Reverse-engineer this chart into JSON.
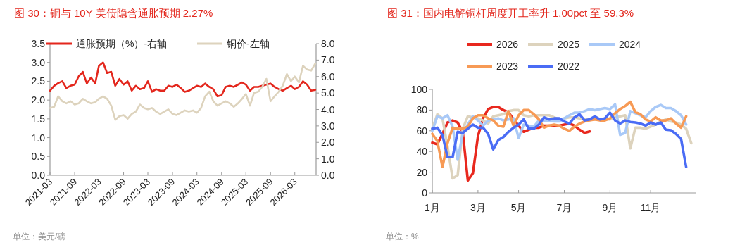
{
  "chart_data": [
    {
      "type": "line",
      "title": "图 30：铜与 10Y 美债隐含通胀预期 2.27%",
      "x": [
        "2021-03-01",
        "2021-04-01",
        "2021-05-01",
        "2021-06-01",
        "2021-07-01",
        "2021-08-01",
        "2021-09-01",
        "2021-10-01",
        "2021-11-01",
        "2021-12-01",
        "2022-01-01",
        "2022-02-01",
        "2022-03-01",
        "2022-04-01",
        "2022-05-01",
        "2022-06-01",
        "2022-07-01",
        "2022-08-01",
        "2022-09-01",
        "2022-10-01",
        "2022-11-01",
        "2022-12-01",
        "2023-01-01",
        "2023-02-01",
        "2023-03-01",
        "2023-04-01",
        "2023-05-01",
        "2023-06-01",
        "2023-07-01",
        "2023-08-01",
        "2023-09-01",
        "2023-10-01",
        "2023-11-01",
        "2023-12-01",
        "2024-01-01",
        "2024-02-01",
        "2024-03-01",
        "2024-04-01",
        "2024-05-01",
        "2024-06-01",
        "2024-07-01",
        "2024-08-01",
        "2024-09-01",
        "2024-10-01",
        "2024-11-01",
        "2024-12-01",
        "2025-01-01",
        "2025-02-01",
        "2025-03-01",
        "2025-04-01",
        "2025-05-01",
        "2025-06-01",
        "2025-07-01",
        "2025-08-01",
        "2025-09-01",
        "2025-10-01",
        "2025-11-01",
        "2025-12-01",
        "2026-01-01",
        "2026-02-01",
        "2026-03-01",
        "2026-04-01",
        "2026-05-01",
        "2026-06-01",
        "2026-07-01",
        "2026-08-01"
      ],
      "series": [
        {
          "name": "通胀预期（%）-右轴",
          "color": "#e3261c",
          "values": [
            2.25,
            2.38,
            2.45,
            2.5,
            2.32,
            2.38,
            2.41,
            2.63,
            2.75,
            2.44,
            2.6,
            2.44,
            2.91,
            3.0,
            2.72,
            2.75,
            2.38,
            2.56,
            2.41,
            2.5,
            2.25,
            2.38,
            2.29,
            2.32,
            2.5,
            2.22,
            2.29,
            2.25,
            2.25,
            2.38,
            2.35,
            2.41,
            2.32,
            2.22,
            2.25,
            2.32,
            2.38,
            2.35,
            2.44,
            2.35,
            2.29,
            2.1,
            2.13,
            2.35,
            2.38,
            2.35,
            2.41,
            2.47,
            2.41,
            2.25,
            2.35,
            2.35,
            2.38,
            2.41,
            2.44,
            2.35,
            2.29,
            2.25,
            2.32,
            2.38,
            2.29,
            2.35,
            2.5,
            2.41,
            2.25,
            2.27
          ]
        },
        {
          "name": "铜价-左轴",
          "color": "#ddd3bd",
          "axis": "y2",
          "values": [
            4.09,
            4.16,
            4.8,
            4.5,
            4.37,
            4.5,
            4.3,
            4.37,
            4.65,
            4.5,
            4.37,
            4.44,
            4.65,
            4.8,
            4.65,
            4.23,
            3.37,
            3.59,
            3.66,
            3.44,
            3.73,
            3.87,
            4.3,
            4.09,
            4.01,
            4.09,
            3.87,
            3.73,
            3.87,
            4.01,
            3.73,
            3.66,
            3.8,
            3.94,
            3.87,
            3.94,
            3.8,
            4.09,
            4.8,
            5.08,
            4.5,
            4.23,
            4.37,
            4.5,
            4.37,
            4.16,
            4.37,
            4.65,
            4.94,
            4.23,
            5.01,
            5.08,
            5.37,
            5.86,
            4.5,
            4.8,
            5.08,
            5.44,
            6.15,
            5.72,
            6.0,
            5.65,
            6.65,
            6.43,
            6.36,
            6.79
          ]
        }
      ],
      "xlim": [
        "2021-03-01",
        "2026-08-07"
      ],
      "xticks": [
        {
          "value": "2021-03-01",
          "label": "2021-03"
        },
        {
          "value": "2021-09-01",
          "label": "2021-09"
        },
        {
          "value": "2022-03-01",
          "label": "2022-03"
        },
        {
          "value": "2022-09-01",
          "label": "2022-09"
        },
        {
          "value": "2023-03-01",
          "label": "2023-03"
        },
        {
          "value": "2023-09-01",
          "label": "2023-09"
        },
        {
          "value": "2024-03-01",
          "label": "2024-03"
        },
        {
          "value": "2024-09-01",
          "label": "2024-09"
        },
        {
          "value": "2025-03-01",
          "label": "2025-03"
        },
        {
          "value": "2025-09-01",
          "label": "2025-09"
        },
        {
          "value": "2026-03-01",
          "label": "2026-03"
        }
      ],
      "ylim": [
        0,
        3.5
      ],
      "yticks": [
        {
          "value": 0,
          "label": "0.0"
        },
        0.5,
        {
          "value": 1,
          "label": "1.0"
        },
        1.5,
        {
          "value": 2,
          "label": "2.0"
        },
        2.5,
        {
          "value": 3,
          "label": "3.0"
        },
        3.5
      ],
      "y2lim": [
        0,
        8
      ],
      "y2ticks": [
        {
          "value": 0,
          "label": "0.0"
        },
        {
          "value": 1,
          "label": "1.0"
        },
        {
          "value": 2,
          "label": "2.0"
        },
        {
          "value": 3,
          "label": "3.0"
        },
        {
          "value": 4,
          "label": "4.0"
        },
        {
          "value": 5,
          "label": "5.0"
        },
        {
          "value": 6,
          "label": "6.0"
        },
        {
          "value": 7,
          "label": "7.0"
        },
        {
          "value": 8,
          "label": "8.0"
        }
      ],
      "legend": "top",
      "annotations": [
        "单位：美元/磅"
      ]
    },
    {
      "type": "line",
      "title": "图 31：国内电解铜杆周度开工率升 1.00pct 至 59.3%",
      "series": [
        {
          "name": "2026",
          "color": "#e8281e",
          "values": [
            48.5,
            47,
            57,
            68,
            70,
            68,
            59,
            12,
            19,
            55,
            72,
            81,
            83,
            83,
            80,
            78,
            71,
            65,
            59,
            61,
            63,
            63,
            65,
            65,
            65,
            65,
            66,
            67,
            65,
            61,
            58,
            59.3,
            null,
            null,
            null,
            null,
            null,
            null,
            null,
            null,
            null,
            null,
            null,
            null,
            null,
            null,
            null,
            null,
            null,
            null,
            null,
            null
          ]
        },
        {
          "name": "2025",
          "color": "#ddd3bd",
          "values": [
            62,
            76,
            72,
            45,
            14,
            17,
            62,
            74,
            73,
            72,
            70,
            67,
            74,
            75,
            76,
            79,
            80,
            80,
            75,
            74,
            75,
            75,
            75,
            75,
            73,
            71,
            72,
            73,
            73,
            72,
            71,
            71,
            71,
            71,
            71,
            71,
            73,
            74,
            75,
            43,
            63,
            63,
            62,
            64,
            66,
            69,
            71,
            69,
            68,
            66,
            62,
            48
          ]
        },
        {
          "name": "2024",
          "color": "#a9c9f7",
          "values": [
            60,
            74,
            72,
            75,
            64,
            32,
            57,
            66,
            74,
            70,
            65,
            70,
            71,
            72,
            70,
            71,
            72,
            53,
            66,
            65,
            64,
            70,
            70,
            70,
            69,
            69,
            72,
            75,
            77.5,
            77.5,
            79,
            81,
            80,
            81,
            82,
            81,
            85.5,
            56,
            58,
            79,
            77,
            75,
            73,
            79,
            83,
            85,
            82,
            82,
            79,
            75,
            66,
            null
          ]
        },
        {
          "name": "2023",
          "color": "#f79a55",
          "values": [
            57,
            50,
            25,
            48,
            63,
            62,
            62,
            64,
            72,
            75,
            75,
            72,
            70,
            65,
            64,
            79,
            65,
            75,
            80,
            80,
            76,
            71,
            63,
            65,
            66,
            65,
            62,
            60,
            64,
            67,
            69,
            70,
            71,
            70,
            70,
            72,
            77,
            81,
            84,
            88,
            78,
            76,
            71,
            69,
            73,
            70,
            70,
            72,
            67,
            63,
            74,
            null
          ]
        },
        {
          "name": "2022",
          "color": "#4a6cf5",
          "values": [
            62,
            63,
            56,
            34.5,
            34.5,
            59,
            58,
            62,
            66,
            63,
            63,
            57,
            42,
            51,
            54,
            59,
            63,
            66,
            71,
            62,
            62,
            66,
            73,
            71,
            72,
            72,
            69,
            67,
            73,
            76,
            70,
            71,
            74,
            71,
            72,
            77.5,
            70,
            67,
            70,
            68.5,
            68,
            67,
            65,
            68,
            66,
            68,
            61,
            60.5,
            57,
            52,
            25,
            null
          ]
        }
      ],
      "categories": [
        "1月",
        null,
        null,
        null,
        null,
        null,
        null,
        null,
        null,
        "3月",
        null,
        null,
        null,
        null,
        null,
        null,
        null,
        "5月",
        null,
        null,
        null,
        null,
        null,
        null,
        null,
        null,
        "7月",
        null,
        null,
        null,
        null,
        null,
        null,
        null,
        null,
        "9月",
        null,
        null,
        null,
        null,
        null,
        null,
        null,
        "11月",
        null,
        null,
        null,
        null,
        null,
        null,
        null,
        null
      ],
      "ylim": [
        0,
        100
      ],
      "yticks": [
        0,
        20,
        40,
        60,
        80,
        100
      ],
      "legend": "top",
      "annotations": [
        "单位：%"
      ]
    }
  ]
}
